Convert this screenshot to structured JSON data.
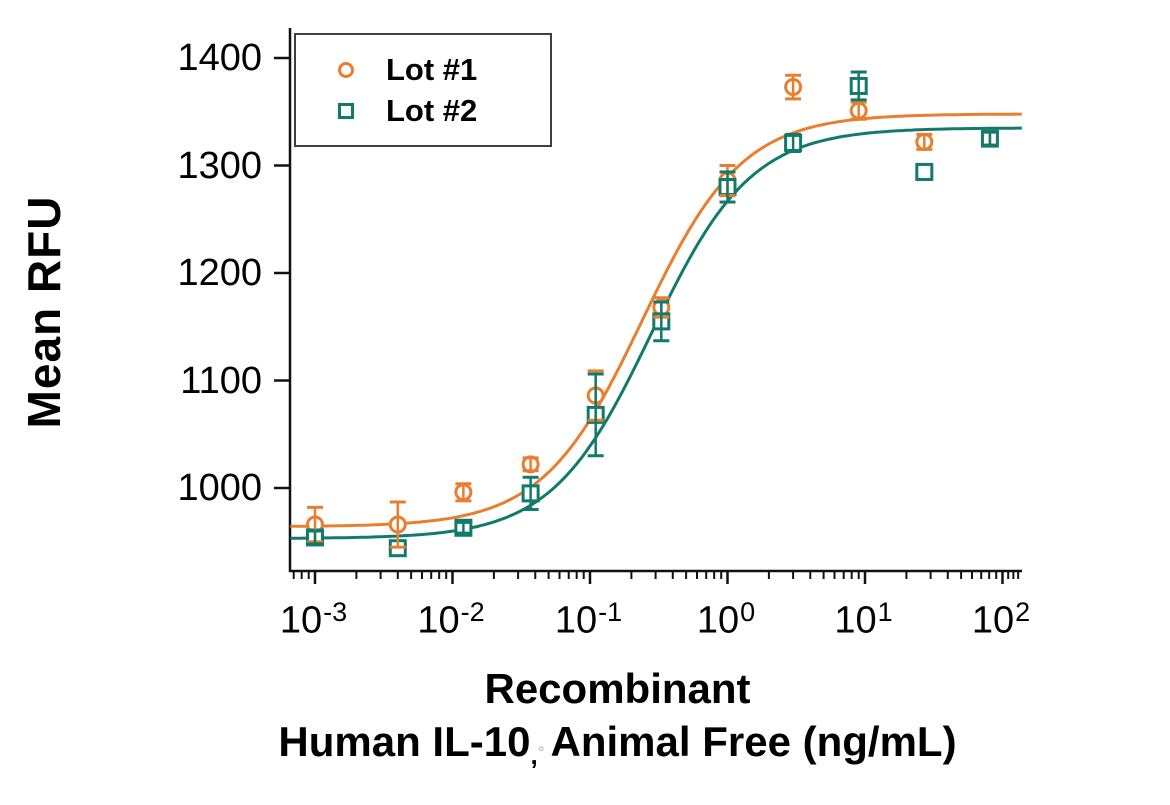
{
  "figure": {
    "y_axis_label": "Mean RFU",
    "x_axis_title_line1": "Recombinant",
    "x_axis_title_line2_pre": "Human IL-10",
    "x_axis_title_comma": ",",
    "x_axis_title_artifact": "°",
    "x_axis_title_line2_post": "Animal Free (ng/mL)"
  },
  "legend": {
    "position": "upper-left",
    "items": [
      {
        "label": "Lot #1",
        "marker": "open-circle-icon",
        "color": "#E87E2F"
      },
      {
        "label": "Lot #2",
        "marker": "open-square-icon",
        "color": "#127A6B"
      }
    ]
  },
  "chart_data": {
    "type": "scatter",
    "x_scale": "log",
    "grid": false,
    "xlabel": "Recombinant Human IL-10, Animal Free (ng/mL)",
    "ylabel": "Mean RFU",
    "xlim": [
      0.00065,
      140
    ],
    "ylim": [
      923,
      1426
    ],
    "x_tick_base": "10",
    "x_tick_exponents": [
      "-3",
      "-2",
      "-1",
      "0",
      "1",
      "2"
    ],
    "x_tick_values": [
      0.001,
      0.01,
      0.1,
      1,
      10,
      100
    ],
    "y_tick_values": [
      1400,
      1300,
      1200,
      1100,
      1000
    ],
    "x": [
      0.001,
      0.004,
      0.012,
      0.037,
      0.11,
      0.33,
      1,
      3,
      9,
      27,
      81
    ],
    "series": [
      {
        "name": "Lot #1",
        "marker": "circle",
        "color": "#E87E2F",
        "values": [
          966,
          966,
          996,
          1022,
          1086,
          1168,
          1286,
          1373,
          1351,
          1322,
          1325
        ],
        "errors": [
          16,
          21,
          8,
          6,
          23,
          9,
          14,
          11,
          8,
          7,
          6
        ],
        "fit_4pl": {
          "bottom": 964,
          "top": 1348,
          "ec50": 0.24,
          "hill": 1.2
        }
      },
      {
        "name": "Lot #2",
        "marker": "square",
        "color": "#127A6B",
        "values": [
          954,
          944,
          963,
          995,
          1068,
          1155,
          1280,
          1321,
          1374,
          1294,
          1325
        ],
        "errors": [
          6,
          0,
          5,
          15,
          38,
          18,
          14,
          8,
          13,
          0,
          6
        ],
        "fit_4pl": {
          "bottom": 953,
          "top": 1335,
          "ec50": 0.28,
          "hill": 1.2
        }
      }
    ]
  }
}
